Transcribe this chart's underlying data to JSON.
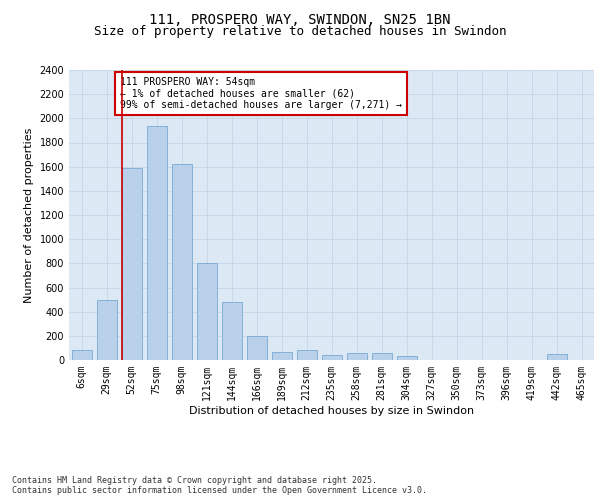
{
  "title1": "111, PROSPERO WAY, SWINDON, SN25 1BN",
  "title2": "Size of property relative to detached houses in Swindon",
  "xlabel": "Distribution of detached houses by size in Swindon",
  "ylabel": "Number of detached properties",
  "categories": [
    "6sqm",
    "29sqm",
    "52sqm",
    "75sqm",
    "98sqm",
    "121sqm",
    "144sqm",
    "166sqm",
    "189sqm",
    "212sqm",
    "235sqm",
    "258sqm",
    "281sqm",
    "304sqm",
    "327sqm",
    "350sqm",
    "373sqm",
    "396sqm",
    "419sqm",
    "442sqm",
    "465sqm"
  ],
  "values": [
    80,
    500,
    1590,
    1940,
    1620,
    800,
    480,
    200,
    70,
    85,
    40,
    60,
    55,
    30,
    0,
    0,
    0,
    0,
    0,
    50,
    0
  ],
  "bar_color": "#b8d0ea",
  "bar_edge_color": "#6aa0cc",
  "vline_x_index": 2,
  "vline_color": "#cc0000",
  "annotation_text": "111 PROSPERO WAY: 54sqm\n← 1% of detached houses are smaller (62)\n99% of semi-detached houses are larger (7,271) →",
  "annotation_box_color": "#ffffff",
  "annotation_box_edge_color": "#cc0000",
  "ylim": [
    0,
    2400
  ],
  "yticks": [
    0,
    200,
    400,
    600,
    800,
    1000,
    1200,
    1400,
    1600,
    1800,
    2000,
    2200,
    2400
  ],
  "grid_color": "#c8d8e8",
  "bg_color": "#dce9f5",
  "footer": "Contains HM Land Registry data © Crown copyright and database right 2025.\nContains public sector information licensed under the Open Government Licence v3.0.",
  "title_fontsize": 10,
  "subtitle_fontsize": 9,
  "tick_fontsize": 7,
  "ylabel_fontsize": 8,
  "xlabel_fontsize": 8,
  "footer_fontsize": 6,
  "annotation_fontsize": 7
}
